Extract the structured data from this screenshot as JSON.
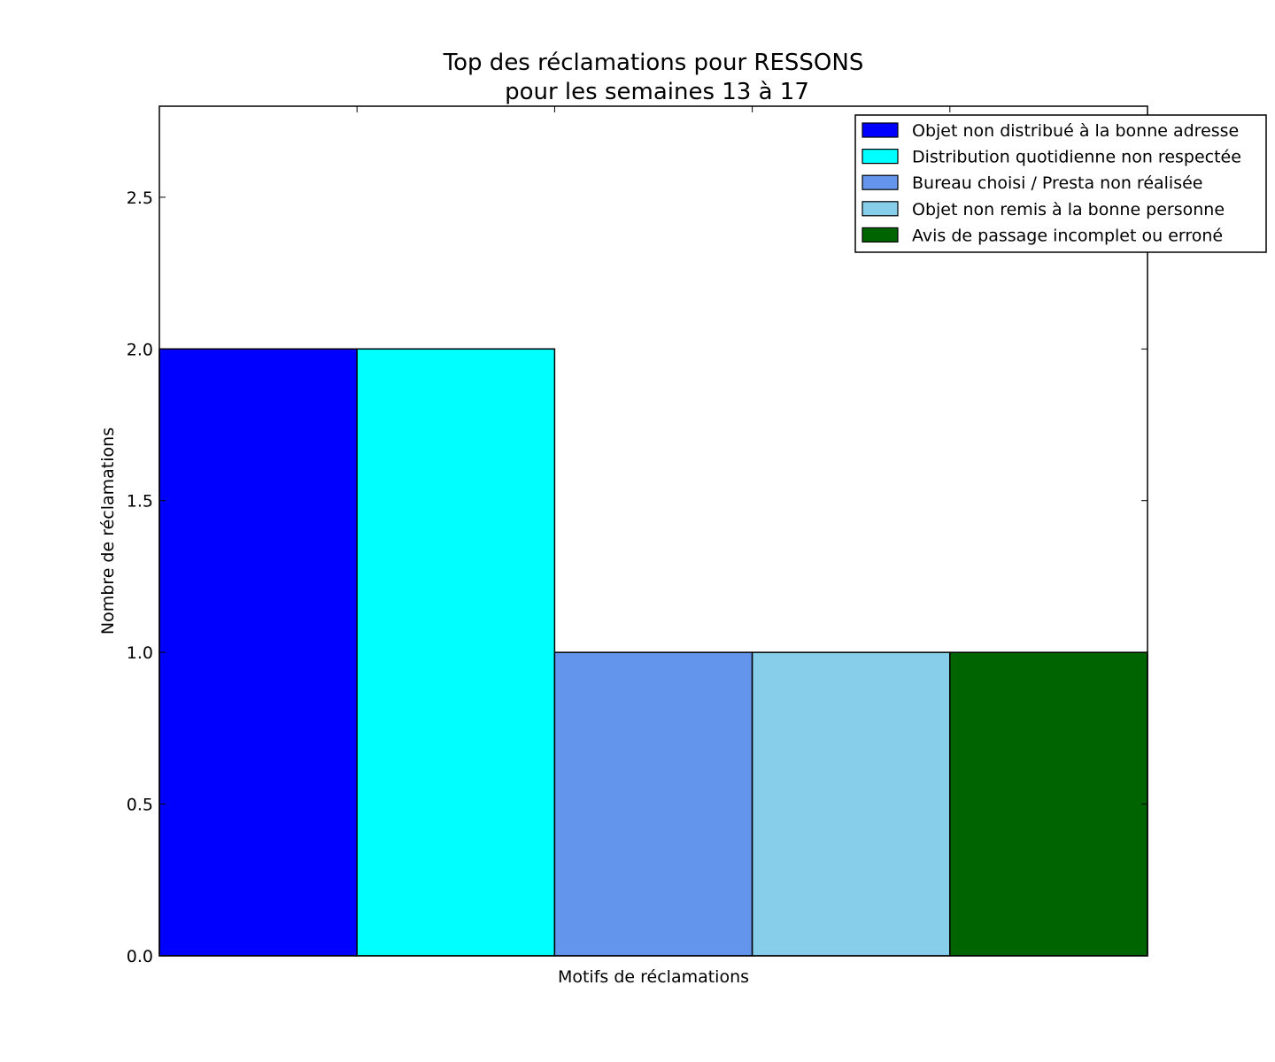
{
  "chart_data": {
    "type": "bar",
    "title": "Top des réclamations pour RESSONS",
    "subtitle": "pour les semaines 13 à 17",
    "xlabel": "Motifs de réclamations",
    "ylabel": "Nombre de réclamations",
    "ylim": [
      0,
      2.8
    ],
    "yticks": [
      "0.0",
      "0.5",
      "1.0",
      "1.5",
      "2.0",
      "2.5"
    ],
    "grid": false,
    "legend_position": "top-right",
    "categories": [
      "Objet non distribué à la bonne adresse",
      "Distribution quotidienne non respectée",
      "Bureau choisi / Presta non réalisée",
      "Objet non remis à la bonne personne",
      "Avis de passage incomplet ou erroné"
    ],
    "values": [
      2,
      2,
      1,
      1,
      1
    ],
    "colors": [
      "#0000ff",
      "#00ffff",
      "#6495ed",
      "#87ceeb",
      "#006400"
    ]
  }
}
